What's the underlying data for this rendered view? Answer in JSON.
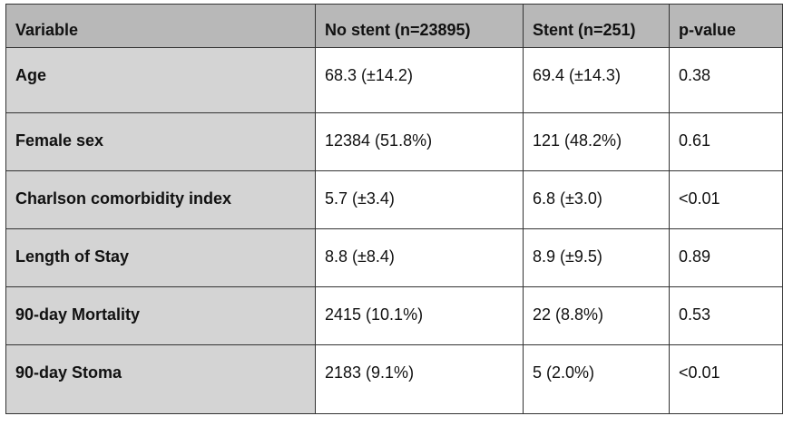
{
  "table": {
    "headers": [
      "Variable",
      "No stent (n=23895)",
      "Stent (n=251)",
      "p-value"
    ],
    "rows": [
      [
        "Age",
        "68.3 (±14.2)",
        "69.4 (±14.3)",
        "0.38"
      ],
      [
        "Female sex",
        "12384 (51.8%)",
        "121 (48.2%)",
        "0.61"
      ],
      [
        "Charlson comorbidity index",
        "5.7 (±3.4)",
        "6.8 (±3.0)",
        "<0.01"
      ],
      [
        "Length of Stay",
        "8.8 (±8.4)",
        "8.9 (±9.5)",
        "0.89"
      ],
      [
        "90-day Mortality",
        "2415 (10.1%)",
        "22 (8.8%)",
        "0.53"
      ],
      [
        "90-day Stoma",
        "2183 (9.1%)",
        "5 (2.0%)",
        "<0.01"
      ]
    ]
  },
  "colors": {
    "header_bg": "#b8b8b8",
    "label_bg": "#d4d4d4",
    "border": "#333333"
  }
}
